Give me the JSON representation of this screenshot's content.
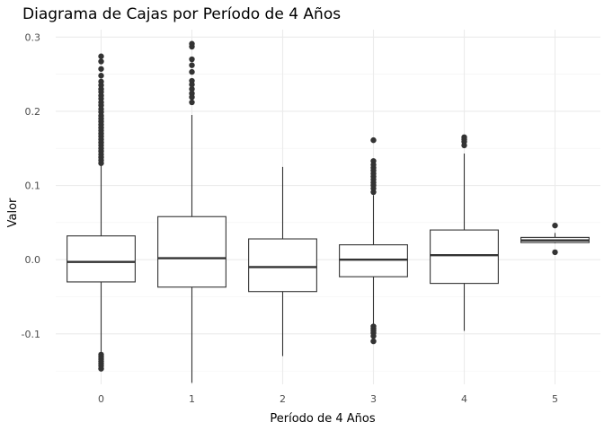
{
  "chart_data": {
    "type": "boxplot",
    "title": "Diagrama de Cajas por Período de 4 Años",
    "xlabel": "Período de 4 Años",
    "ylabel": "Valor",
    "categories": [
      "0",
      "1",
      "2",
      "3",
      "4",
      "5"
    ],
    "y_ticks": [
      -0.1,
      0.0,
      0.1,
      0.2,
      0.3
    ],
    "y_tick_labels": [
      "-0.1",
      "0.0",
      "0.1",
      "0.2",
      "0.3"
    ],
    "ylim": [
      -0.168,
      0.31
    ],
    "grid": true,
    "boxes": [
      {
        "category": "0",
        "min": -0.126,
        "q1": -0.03,
        "median": -0.003,
        "q3": 0.032,
        "max": 0.127,
        "outliers": [
          0.274,
          0.267,
          0.257,
          0.248,
          0.24,
          0.235,
          0.23,
          0.226,
          0.221,
          0.217,
          0.212,
          0.208,
          0.203,
          0.199,
          0.194,
          0.19,
          0.186,
          0.182,
          0.178,
          0.174,
          0.17,
          0.166,
          0.162,
          0.158,
          0.154,
          0.15,
          0.146,
          0.142,
          0.138,
          0.134,
          0.13,
          -0.128,
          -0.131,
          -0.134,
          -0.137,
          -0.14,
          -0.143,
          -0.147
        ]
      },
      {
        "category": "1",
        "min": -0.166,
        "q1": -0.037,
        "median": 0.002,
        "q3": 0.058,
        "max": 0.195,
        "outliers": [
          0.291,
          0.287,
          0.27,
          0.262,
          0.253,
          0.241,
          0.236,
          0.23,
          0.224,
          0.219,
          0.212
        ]
      },
      {
        "category": "2",
        "min": -0.13,
        "q1": -0.043,
        "median": -0.01,
        "q3": 0.028,
        "max": 0.125,
        "outliers": []
      },
      {
        "category": "3",
        "min": -0.088,
        "q1": -0.023,
        "median": 0.0,
        "q3": 0.02,
        "max": 0.087,
        "outliers": [
          0.161,
          0.133,
          0.128,
          0.124,
          0.12,
          0.116,
          0.112,
          0.108,
          0.104,
          0.1,
          0.096,
          0.091,
          -0.09,
          -0.093,
          -0.096,
          -0.099,
          -0.103,
          -0.11
        ]
      },
      {
        "category": "4",
        "min": -0.096,
        "q1": -0.032,
        "median": 0.006,
        "q3": 0.04,
        "max": 0.143,
        "outliers": [
          0.165,
          0.162,
          0.159,
          0.154
        ]
      },
      {
        "category": "5",
        "min": 0.022,
        "q1": 0.023,
        "median": 0.026,
        "q3": 0.03,
        "max": 0.036,
        "outliers": [
          0.046,
          0.01
        ]
      }
    ]
  }
}
